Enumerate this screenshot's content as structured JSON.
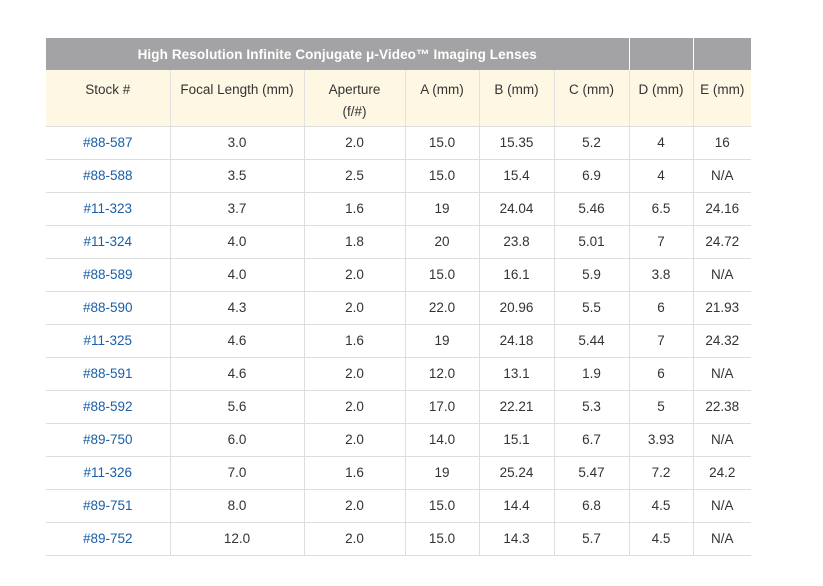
{
  "table": {
    "title": "High Resolution Infinite Conjugate μ-Video™ Imaging Lenses",
    "headers": [
      "Stock #",
      "Focal Length (mm)",
      "Aperture\n(f/#)",
      "A (mm)",
      "B (mm)",
      "C (mm)",
      "D (mm)",
      "E (mm)"
    ],
    "header_aperture_line1": "Aperture",
    "header_aperture_line2": "(f/#)",
    "link_color": "#1a5fa8",
    "title_bar_color": "#a3a3a5",
    "header_bg_color": "#fdf7e4",
    "rows": [
      [
        "#88-587",
        "3.0",
        "2.0",
        "15.0",
        "15.35",
        "5.2",
        "4",
        "16"
      ],
      [
        "#88-588",
        "3.5",
        "2.5",
        "15.0",
        "15.4",
        "6.9",
        "4",
        "N/A"
      ],
      [
        "#11-323",
        "3.7",
        "1.6",
        "19",
        "24.04",
        "5.46",
        "6.5",
        "24.16"
      ],
      [
        "#11-324",
        "4.0",
        "1.8",
        "20",
        "23.8",
        "5.01",
        "7",
        "24.72"
      ],
      [
        "#88-589",
        "4.0",
        "2.0",
        "15.0",
        "16.1",
        "5.9",
        "3.8",
        "N/A"
      ],
      [
        "#88-590",
        "4.3",
        "2.0",
        "22.0",
        "20.96",
        "5.5",
        "6",
        "21.93"
      ],
      [
        "#11-325",
        "4.6",
        "1.6",
        "19",
        "24.18",
        "5.44",
        "7",
        "24.32"
      ],
      [
        "#88-591",
        "4.6",
        "2.0",
        "12.0",
        "13.1",
        "1.9",
        "6",
        "N/A"
      ],
      [
        "#88-592",
        "5.6",
        "2.0",
        "17.0",
        "22.21",
        "5.3",
        "5",
        "22.38"
      ],
      [
        "#89-750",
        "6.0",
        "2.0",
        "14.0",
        "15.1",
        "6.7",
        "3.93",
        "N/A"
      ],
      [
        "#11-326",
        "7.0",
        "1.6",
        "19",
        "25.24",
        "5.47",
        "7.2",
        "24.2"
      ],
      [
        "#89-751",
        "8.0",
        "2.0",
        "15.0",
        "14.4",
        "6.8",
        "4.5",
        "N/A"
      ],
      [
        "#89-752",
        "12.0",
        "2.0",
        "15.0",
        "14.3",
        "5.7",
        "4.5",
        "N/A"
      ]
    ]
  }
}
